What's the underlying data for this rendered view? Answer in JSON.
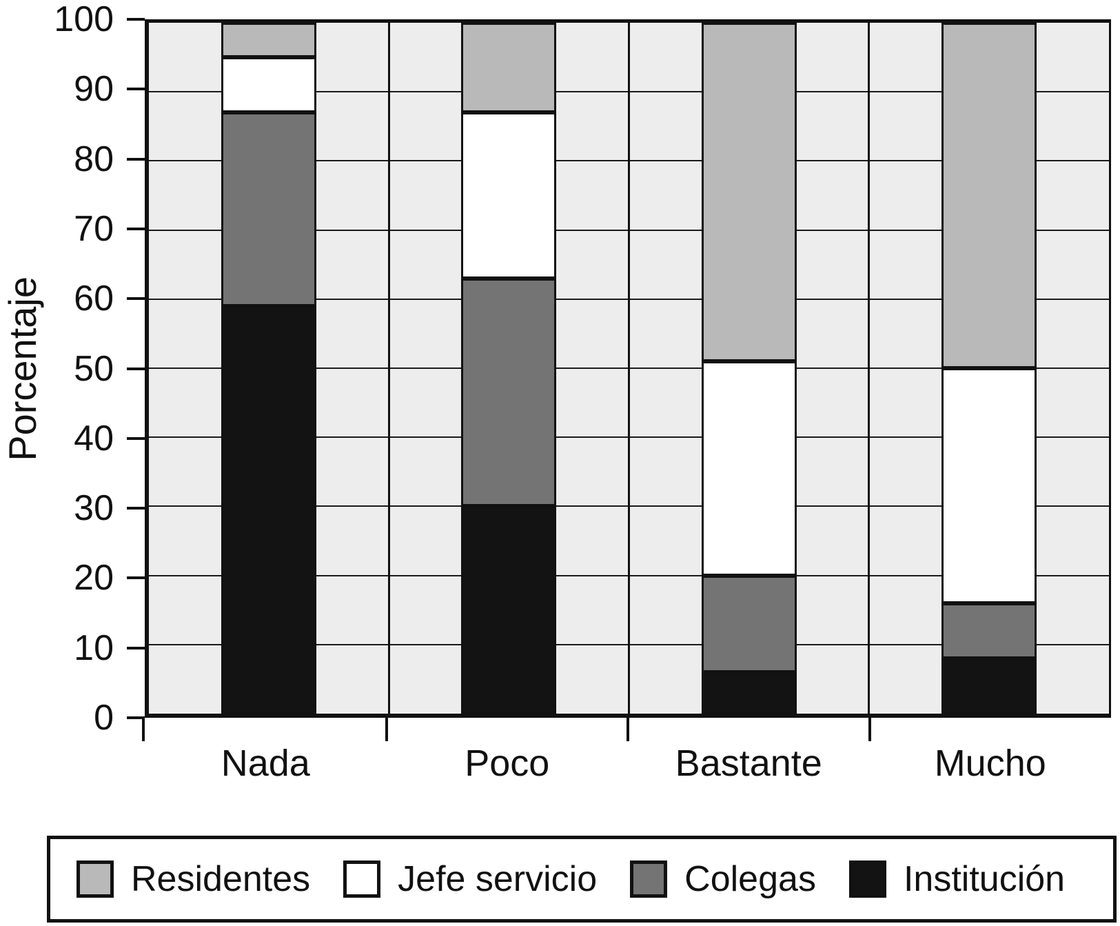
{
  "chart_data": {
    "type": "bar",
    "subtype": "stacked-100-percent",
    "ylabel": "Porcentaje",
    "xlabel": "",
    "categories": [
      "Nada",
      "Poco",
      "Bastante",
      "Mucho"
    ],
    "series": [
      {
        "name": "Institución",
        "color": "#131313",
        "values": [
          59,
          30,
          6,
          8
        ]
      },
      {
        "name": "Colegas",
        "color": "#747474",
        "values": [
          28,
          33,
          14,
          8
        ]
      },
      {
        "name": "Jefe servicio",
        "color": "#ffffff",
        "values": [
          8,
          24,
          31,
          34
        ]
      },
      {
        "name": "Residentes",
        "color": "#b9b9b9",
        "values": [
          5,
          13,
          49,
          50
        ]
      }
    ],
    "stack_order": "bottom-to-top",
    "ylim": [
      0,
      100
    ],
    "yticks": [
      0,
      10,
      20,
      30,
      40,
      50,
      60,
      70,
      80,
      90,
      100
    ],
    "grid": {
      "horizontal": true,
      "vertical_category_boundaries": true
    },
    "legend_position": "bottom",
    "legend_order": [
      "Residentes",
      "Jefe servicio",
      "Colegas",
      "Institución"
    ],
    "plot_background": "#ededed"
  }
}
